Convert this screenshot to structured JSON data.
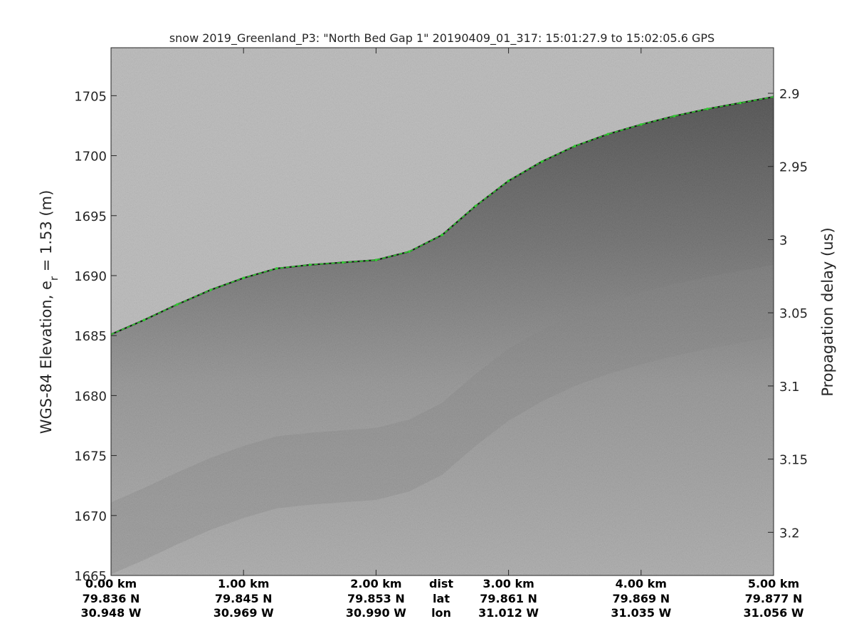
{
  "chart_data": {
    "type": "radar-echogram",
    "title": "snow 2019_Greenland_P3: \"North Bed Gap 1\"  20190409_01_317: 15:01:27.9 to 15:02:05.6 GPS",
    "ylabel_left": {
      "prefix": "WGS-84 Elevation, e",
      "subscript": "r",
      "suffix": " = 1.53 (m)"
    },
    "ylabel_right": "Propagation delay (us)",
    "ylim_elevation": [
      1665,
      1709
    ],
    "y_ticks_left": [
      "1705",
      "1700",
      "1695",
      "1690",
      "1685",
      "1680",
      "1675",
      "1670",
      "1665"
    ],
    "y_ticks_left_values": [
      1705,
      1700,
      1695,
      1690,
      1685,
      1680,
      1675,
      1670,
      1665
    ],
    "y_ticks_right": [
      "2.9",
      "2.95",
      "3",
      "3.05",
      "3.1",
      "3.15",
      "3.2"
    ],
    "y_ticks_right_elevation": [
      1705.2,
      1699.1,
      1693.0,
      1686.9,
      1680.8,
      1674.7,
      1668.6
    ],
    "x_range_km": [
      0,
      5
    ],
    "x_ticks": [
      {
        "km": 0,
        "dist": "0.00 km",
        "lat": "79.836 N",
        "lon": "30.948 W"
      },
      {
        "km": 1,
        "dist": "1.00 km",
        "lat": "79.845 N",
        "lon": "30.969 W"
      },
      {
        "km": 2,
        "dist": "2.00 km",
        "lat": "79.853 N",
        "lon": "30.990 W"
      },
      {
        "km": 3,
        "dist": "3.00 km",
        "lat": "79.861 N",
        "lon": "31.012 W"
      },
      {
        "km": 4,
        "dist": "4.00 km",
        "lat": "79.869 N",
        "lon": "31.035 W"
      },
      {
        "km": 5,
        "dist": "5.00 km",
        "lat": "79.877 N",
        "lon": "31.056 W"
      }
    ],
    "row_labels": [
      "dist",
      "lat",
      "lon"
    ],
    "surface_layer": {
      "x_km": [
        0,
        0.25,
        0.5,
        0.75,
        1.0,
        1.25,
        1.5,
        1.75,
        2.0,
        2.25,
        2.5,
        2.75,
        3.0,
        3.25,
        3.5,
        3.75,
        4.0,
        4.25,
        4.5,
        4.75,
        5.0
      ],
      "elevation_m": [
        1685.1,
        1686.3,
        1687.6,
        1688.8,
        1689.8,
        1690.6,
        1690.9,
        1691.1,
        1691.3,
        1692.0,
        1693.4,
        1695.8,
        1697.9,
        1699.5,
        1700.8,
        1701.8,
        1702.6,
        1703.3,
        1703.9,
        1704.4,
        1704.9
      ]
    },
    "colors": {
      "surface_line": "#33cc33",
      "air": "#b8b8b8",
      "near_surface": "#4a4a4a",
      "deep": "#9a9a9a"
    }
  }
}
